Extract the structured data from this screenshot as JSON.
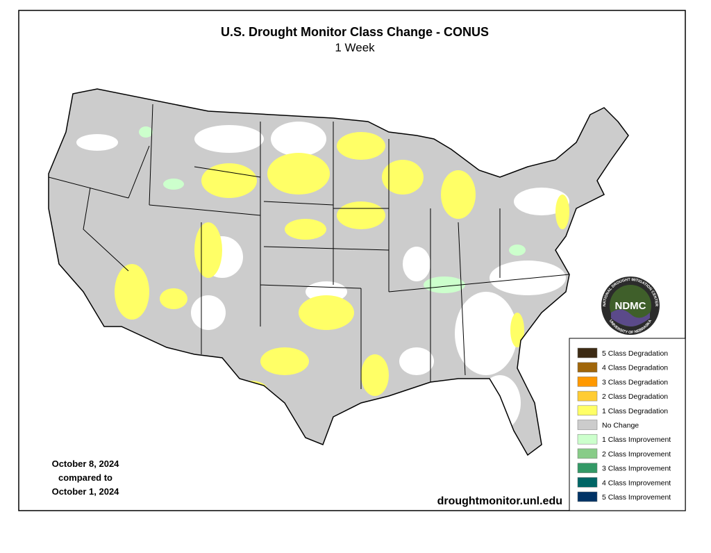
{
  "header": {
    "title": "U.S. Drought Monitor Class Change - CONUS",
    "subtitle": "1 Week"
  },
  "date": {
    "lines": [
      "October 8, 2024",
      "compared to",
      "October 1, 2024"
    ]
  },
  "source": "droughtmonitor.unl.edu",
  "logo": {
    "acronym": "NDMC",
    "ring_top": "NATIONAL DROUGHT MITIGATION CENTER",
    "ring_bottom": "UNIVERSITY OF NEBRASKA"
  },
  "legend": {
    "items": [
      {
        "label": "5 Class Degradation",
        "color": "#3d2b14"
      },
      {
        "label": "4 Class Degradation",
        "color": "#a0660a"
      },
      {
        "label": "3 Class Degradation",
        "color": "#ff9900"
      },
      {
        "label": "2 Class Degradation",
        "color": "#ffcc33"
      },
      {
        "label": "1 Class Degradation",
        "color": "#ffff66"
      },
      {
        "label": "No Change",
        "color": "#cccccc"
      },
      {
        "label": "1 Class Improvement",
        "color": "#ccffcc"
      },
      {
        "label": "2 Class Improvement",
        "color": "#88cc88"
      },
      {
        "label": "3 Class Improvement",
        "color": "#339966"
      },
      {
        "label": "4 Class Improvement",
        "color": "#006666"
      },
      {
        "label": "5 Class Improvement",
        "color": "#003366"
      }
    ]
  }
}
